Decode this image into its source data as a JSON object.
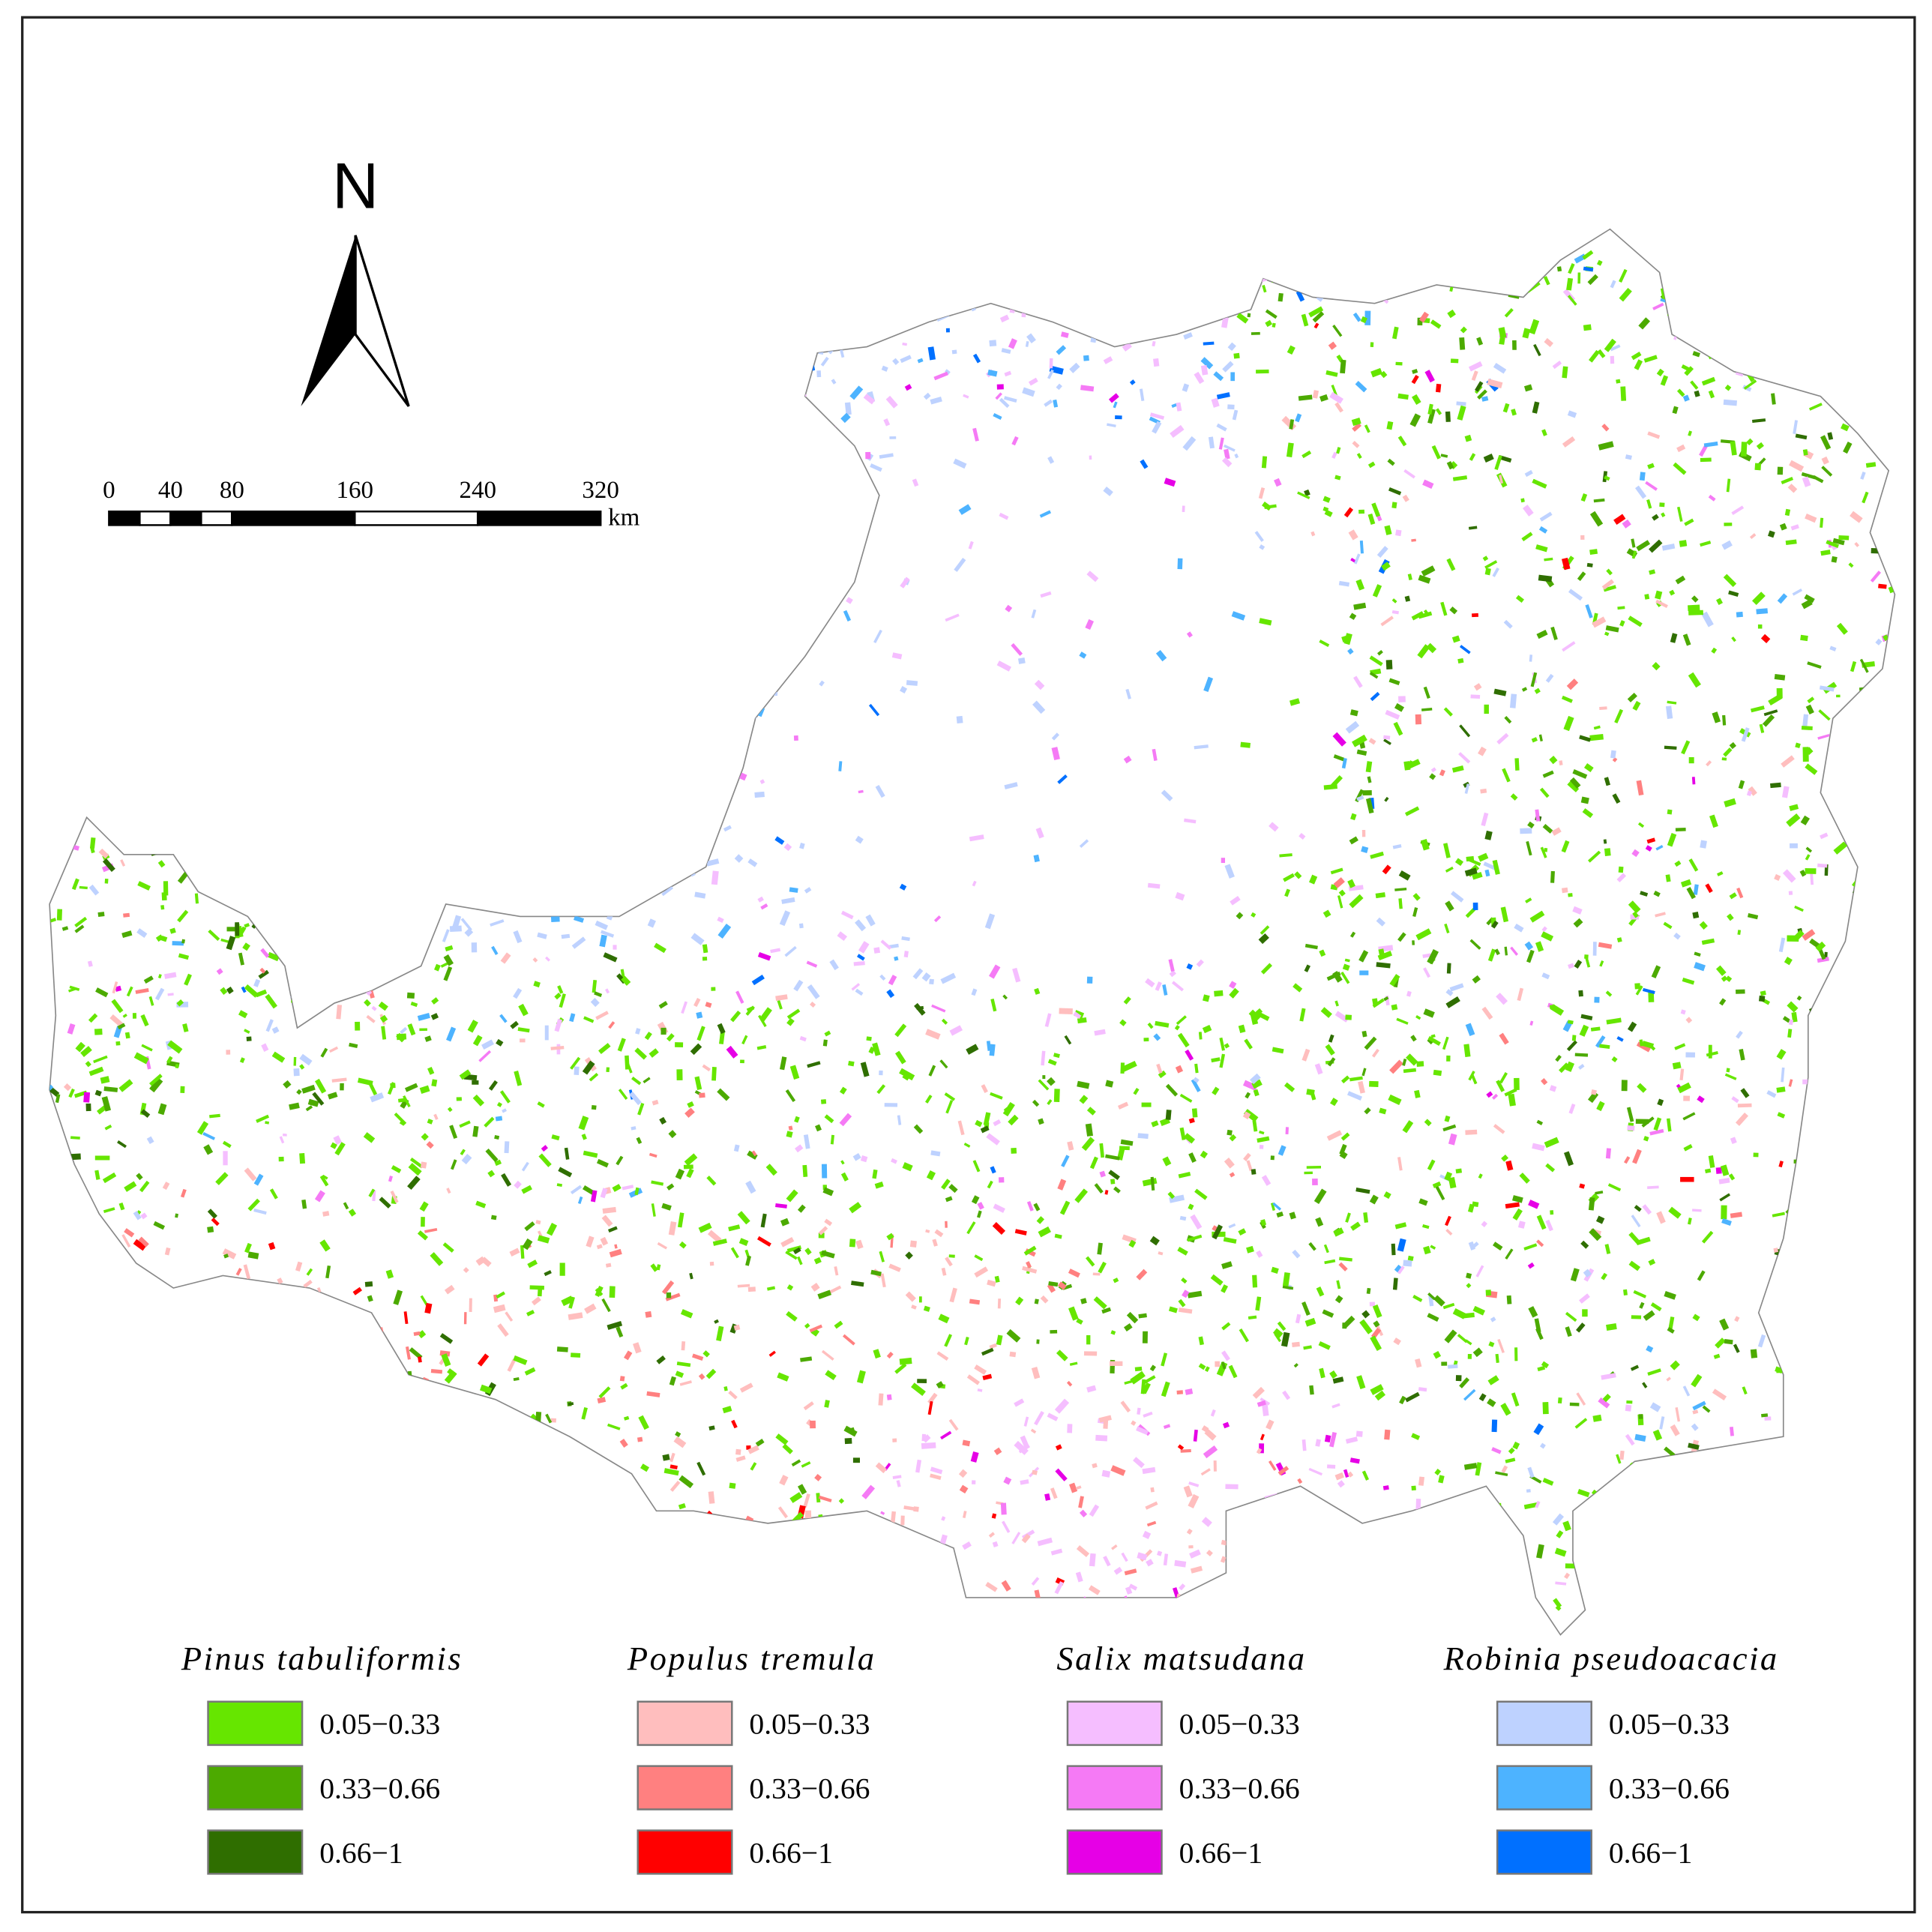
{
  "north_arrow": {
    "label": "N"
  },
  "scale_bar": {
    "ticks": [
      0,
      40,
      80,
      160,
      240,
      320
    ],
    "unit": "km"
  },
  "legend": [
    {
      "title": "Pinus tabuliformis",
      "items": [
        {
          "label": "0.05−0.33",
          "color": "#66e600"
        },
        {
          "label": "0.33−0.66",
          "color": "#4caa00"
        },
        {
          "label": "0.66−1",
          "color": "#2f6e00"
        }
      ]
    },
    {
      "title": "Populus tremula",
      "items": [
        {
          "label": "0.05−0.33",
          "color": "#ffbebe"
        },
        {
          "label": "0.33−0.66",
          "color": "#ff8080"
        },
        {
          "label": "0.66−1",
          "color": "#ff0000"
        }
      ]
    },
    {
      "title": "Salix matsudana",
      "items": [
        {
          "label": "0.05−0.33",
          "color": "#f5beff"
        },
        {
          "label": "0.33−0.66",
          "color": "#f57af5"
        },
        {
          "label": "0.66−1",
          "color": "#e600e6"
        }
      ]
    },
    {
      "title": "Robinia pseudoacacia",
      "items": [
        {
          "label": "0.05−0.33",
          "color": "#bed2ff"
        },
        {
          "label": "0.33−0.66",
          "color": "#4db3ff"
        },
        {
          "label": "0.66−1",
          "color": "#0070ff"
        }
      ]
    }
  ]
}
